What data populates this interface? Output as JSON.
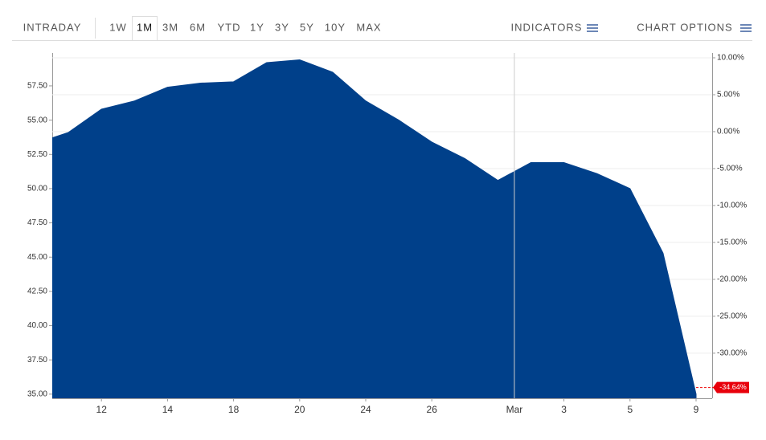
{
  "toolbar": {
    "ranges": [
      "INTRADAY",
      "1W",
      "1M",
      "3M",
      "6M",
      "YTD",
      "1Y",
      "3Y",
      "5Y",
      "10Y",
      "MAX"
    ],
    "active_range": 2,
    "indicators": "INDICATORS",
    "chart_options": "CHART OPTIONS"
  },
  "chart_data": {
    "type": "area",
    "color": "#00408a",
    "categories": [
      null,
      null,
      "12",
      null,
      "14",
      null,
      "18",
      null,
      "20",
      null,
      "24",
      null,
      "26",
      null,
      null,
      "Mar",
      "3",
      null,
      "5",
      null,
      "9"
    ],
    "values": [
      53.3,
      54.1,
      55.8,
      56.4,
      57.4,
      57.7,
      57.8,
      59.2,
      59.4,
      58.5,
      56.4,
      55.0,
      53.4,
      52.2,
      50.6,
      51.9,
      51.9,
      51.1,
      50.0,
      45.3,
      35.0
    ],
    "ylim": [
      34.7,
      59.9
    ],
    "yticks": [
      {
        "value": 35,
        "label": "35.00"
      },
      {
        "value": 37.5,
        "label": "37.50"
      },
      {
        "value": 40,
        "label": "40.00"
      },
      {
        "value": 42.5,
        "label": "42.50"
      },
      {
        "value": 45,
        "label": "45.00"
      },
      {
        "value": 47.5,
        "label": "47.50"
      },
      {
        "value": 50,
        "label": "50.00"
      },
      {
        "value": 52.5,
        "label": "52.50"
      },
      {
        "value": 55,
        "label": "55.00"
      },
      {
        "value": 57.5,
        "label": "57.50"
      }
    ],
    "y2lim": [
      -36.1,
      10.65
    ],
    "y2ticks": [
      {
        "value": -30,
        "label": "-30.00%"
      },
      {
        "value": -25,
        "label": "-25.00%"
      },
      {
        "value": -20,
        "label": "-20.00%"
      },
      {
        "value": -15,
        "label": "-15.00%"
      },
      {
        "value": -10,
        "label": "-10.00%"
      },
      {
        "value": -5,
        "label": "-5.00%"
      },
      {
        "value": 0,
        "label": "0.00%"
      },
      {
        "value": 5,
        "label": "5.00%"
      },
      {
        "value": 10,
        "label": "10.00%"
      }
    ],
    "last_change": {
      "value": -34.64,
      "label": "-34.64%"
    },
    "grid": true
  }
}
